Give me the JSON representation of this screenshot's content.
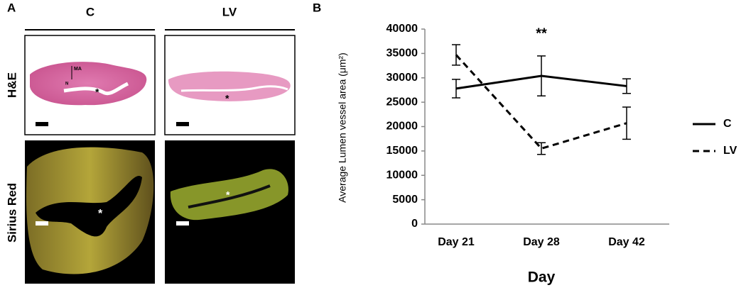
{
  "panel_a": {
    "label": "A",
    "columns": [
      "C",
      "LV"
    ],
    "rows": [
      "H&E",
      "Sirius Red"
    ],
    "image_labels": [
      "MA",
      "N",
      "*",
      "*",
      "*",
      "*"
    ]
  },
  "chart_data": {
    "type": "line",
    "panel_label": "B",
    "title": "**",
    "x_label": "Day",
    "y_label": "Average Lumen vessel area (μm²)",
    "categories": [
      "Day 21",
      "Day 28",
      "Day 42"
    ],
    "series": [
      {
        "name": "C",
        "color": "#000000",
        "line_style": "solid",
        "values": [
          27800,
          30400,
          28300
        ],
        "errors": [
          1900,
          4100,
          1500
        ]
      },
      {
        "name": "LV",
        "color": "#000000",
        "line_style": "dashed",
        "values": [
          34700,
          15500,
          20700
        ],
        "errors": [
          2100,
          1200,
          3300
        ]
      }
    ],
    "ylim": [
      0,
      40000
    ],
    "yticks": [
      0,
      5000,
      10000,
      15000,
      20000,
      25000,
      30000,
      35000,
      40000
    ],
    "legend": "right"
  }
}
